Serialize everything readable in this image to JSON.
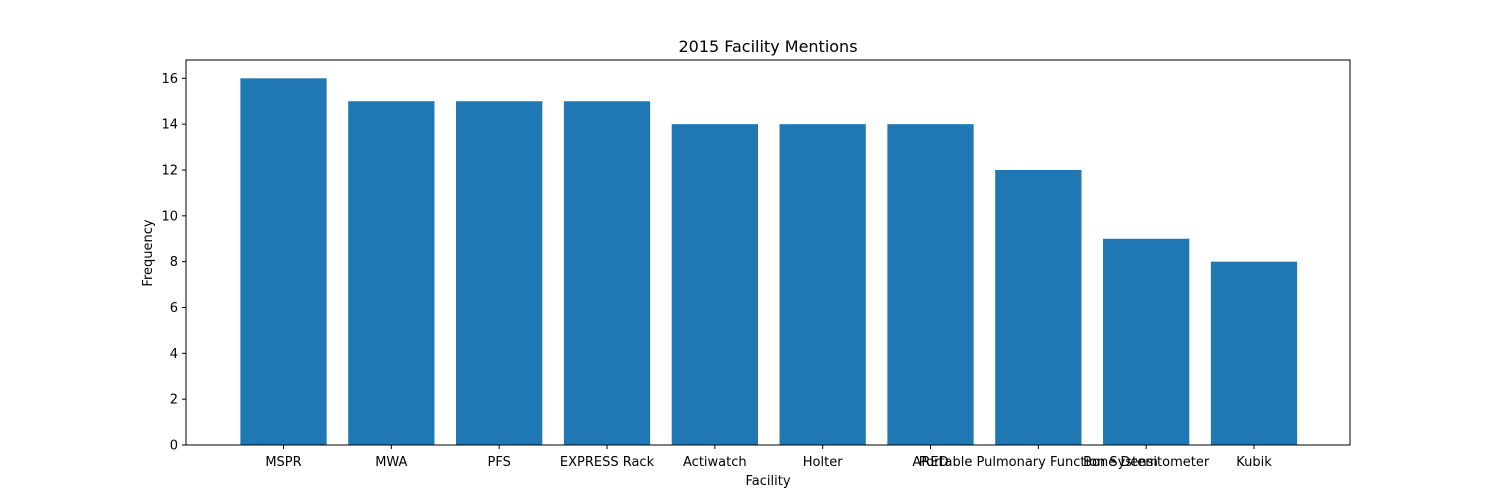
{
  "chart_data": {
    "type": "bar",
    "title": "2015 Facility Mentions",
    "xlabel": "Facility",
    "ylabel": "Frequency",
    "categories": [
      "MSPR",
      "MWA",
      "PFS",
      "EXPRESS Rack",
      "Actiwatch",
      "Holter",
      "ARED",
      "Portable Pulmonary Function System",
      "Bone Densitometer",
      "Kubik"
    ],
    "values": [
      16,
      15,
      15,
      15,
      14,
      14,
      14,
      12,
      9,
      8
    ],
    "ylim": [
      0,
      16.8
    ],
    "yticks": [
      "0",
      "2",
      "4",
      "6",
      "8",
      "10",
      "12",
      "14",
      "16"
    ],
    "bar_color": "#1f77b4",
    "grid": false,
    "legend": "none"
  }
}
